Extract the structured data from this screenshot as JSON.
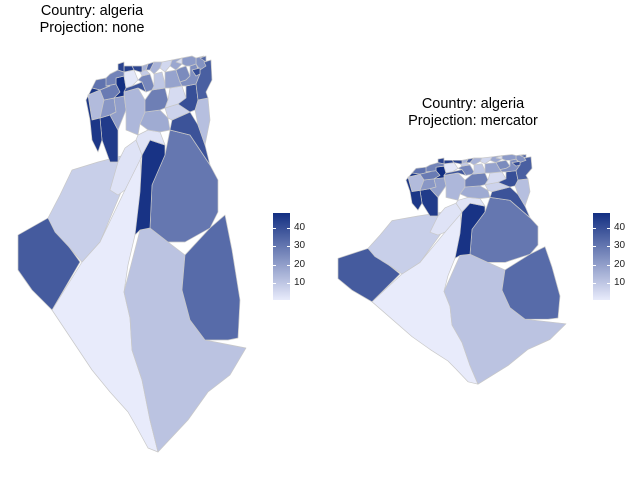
{
  "colors": {
    "low": "#e8ebfb",
    "high": "#132f82",
    "border": "#c8c8c8"
  },
  "legend": {
    "min": 1,
    "max": 48,
    "ticks": [
      "10",
      "20",
      "30",
      "40"
    ],
    "tick_values": [
      10,
      20,
      30,
      40
    ]
  },
  "panels": [
    {
      "title_line1": "Country: algeria",
      "title_line2": "Projection: none",
      "projection": "none"
    },
    {
      "title_line1": "Country: algeria",
      "title_line2": "Projection: mercator",
      "projection": "mercator"
    }
  ],
  "provinces": [
    {
      "id": "adrar",
      "value": 1
    },
    {
      "id": "tindouf",
      "value": 37
    },
    {
      "id": "bechar",
      "value": 8
    },
    {
      "id": "tamanrasset",
      "value": 11
    },
    {
      "id": "illizi",
      "value": 33
    },
    {
      "id": "ouargla",
      "value": 30
    },
    {
      "id": "ghardaia",
      "value": 47
    },
    {
      "id": "elbayadh",
      "value": 3
    },
    {
      "id": "laghouat",
      "value": 3
    },
    {
      "id": "djelfa",
      "value": 17
    },
    {
      "id": "eloued",
      "value": 39
    },
    {
      "id": "naama",
      "value": 45
    },
    {
      "id": "biskra",
      "value": 7
    },
    {
      "id": "tebessa",
      "value": 12
    },
    {
      "id": "tlemcen",
      "value": 13
    },
    {
      "id": "sidibelabbes",
      "value": 22
    },
    {
      "id": "saida",
      "value": 20
    },
    {
      "id": "tiaret",
      "value": 14
    },
    {
      "id": "msila",
      "value": 28
    },
    {
      "id": "batna",
      "value": 5
    },
    {
      "id": "khenchela",
      "value": 40
    },
    {
      "id": "oran",
      "value": 31
    },
    {
      "id": "mascara",
      "value": 29
    },
    {
      "id": "relizane",
      "value": 48
    },
    {
      "id": "chlef",
      "value": 2
    },
    {
      "id": "tissemsilt",
      "value": 38
    },
    {
      "id": "medea",
      "value": 26
    },
    {
      "id": "bouira",
      "value": 10
    },
    {
      "id": "setif",
      "value": 19
    },
    {
      "id": "constantine",
      "value": 25
    },
    {
      "id": "guelma",
      "value": 24
    },
    {
      "id": "annaba",
      "value": 23
    },
    {
      "id": "eltarf",
      "value": 36
    },
    {
      "id": "skikda",
      "value": 21
    },
    {
      "id": "jijel",
      "value": 18
    },
    {
      "id": "bejaia",
      "value": 6
    },
    {
      "id": "tiziouzou",
      "value": 15
    },
    {
      "id": "boumerdes",
      "value": 35
    },
    {
      "id": "alger",
      "value": 16
    },
    {
      "id": "blida",
      "value": 9
    },
    {
      "id": "tipaza",
      "value": 42
    },
    {
      "id": "aindefla",
      "value": 44
    },
    {
      "id": "mostaganem",
      "value": 27
    },
    {
      "id": "aintemouchent",
      "value": 46
    },
    {
      "id": "mila",
      "value": 43
    },
    {
      "id": "oumelbouaghi",
      "value": 4
    },
    {
      "id": "souk_ahras",
      "value": 41
    },
    {
      "id": "bordj",
      "value": 34
    }
  ]
}
